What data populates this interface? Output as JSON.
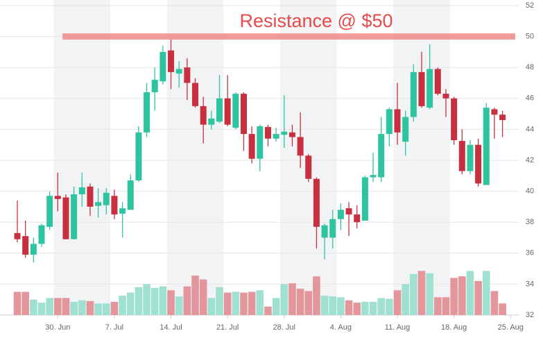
{
  "chart_data": {
    "type": "candlestick",
    "categories": [
      "25. Jun",
      "26. Jun",
      "27. Jun",
      "28. Jun",
      "29. Jun",
      "30. Jun",
      "1. Jul",
      "2. Jul",
      "3. Jul",
      "4. Jul",
      "5. Jul",
      "6. Jul",
      "7. Jul",
      "8. Jul",
      "9. Jul",
      "10. Jul",
      "11. Jul",
      "12. Jul",
      "13. Jul",
      "14. Jul",
      "15. Jul",
      "16. Jul",
      "17. Jul",
      "18. Jul",
      "19. Jul",
      "20. Jul",
      "21. Jul",
      "22. Jul",
      "23. Jul",
      "24. Jul",
      "25. Jul",
      "26. Jul",
      "27. Jul",
      "28. Jul",
      "29. Jul",
      "30. Jul",
      "31. Jul",
      "1. Aug",
      "2. Aug",
      "3. Aug",
      "4. Aug",
      "5. Aug",
      "6. Aug",
      "7. Aug",
      "8. Aug",
      "9. Aug",
      "10. Aug",
      "11. Aug",
      "12. Aug",
      "13. Aug",
      "14. Aug",
      "15. Aug",
      "16. Aug",
      "17. Aug",
      "18. Aug",
      "19. Aug",
      "20. Aug",
      "21. Aug",
      "22. Aug",
      "23. Aug",
      "24. Aug"
    ],
    "open": [
      37.3,
      37.1,
      35.9,
      36.6,
      37.7,
      39.7,
      39.6,
      36.9,
      39.8,
      40.3,
      39.05,
      39.1,
      39.7,
      38.55,
      38.8,
      40.7,
      43.8,
      46.4,
      47.1,
      49.1,
      47.6,
      48.0,
      47.0,
      45.5,
      44.3,
      44.5,
      46.0,
      44.1,
      46.3,
      43.7,
      42.1,
      44.15,
      43.4,
      43.65,
      43.8,
      43.5,
      42.3,
      40.8,
      37.0,
      37.0,
      38.2,
      38.9,
      38.5,
      38.1,
      40.9,
      40.9,
      43.7,
      45.3,
      43.2,
      44.8,
      47.7,
      45.4,
      47.9,
      46.3,
      46.0,
      43.25,
      41.3,
      43.0,
      40.4,
      45.3,
      44.95
    ],
    "high": [
      39.4,
      38.1,
      37.0,
      37.9,
      40.0,
      41.2,
      39.8,
      40.3,
      41.2,
      40.5,
      40.2,
      40.2,
      40.1,
      39.3,
      41.1,
      44.2,
      47.0,
      48.0,
      49.4,
      49.8,
      48.4,
      48.6,
      47.3,
      46.1,
      45.2,
      47.5,
      47.5,
      46.4,
      46.4,
      44.2,
      44.3,
      44.3,
      44.1,
      46.2,
      44.3,
      45.1,
      42.4,
      40.9,
      37.9,
      38.8,
      39.2,
      39.3,
      39.1,
      41.0,
      42.5,
      44.8,
      45.4,
      47.0,
      45.2,
      48.2,
      49.0,
      49.5,
      48.0,
      46.6,
      46.1,
      44.0,
      43.3,
      43.4,
      45.7,
      45.4,
      45.2
    ],
    "low": [
      36.7,
      35.7,
      35.4,
      36.4,
      37.5,
      38.7,
      36.9,
      36.9,
      39.0,
      38.4,
      38.3,
      38.5,
      38.2,
      37.0,
      38.8,
      40.6,
      43.5,
      45.2,
      46.9,
      46.6,
      46.7,
      45.9,
      45.4,
      43.1,
      44.0,
      44.4,
      44.2,
      44.0,
      42.6,
      41.8,
      41.3,
      42.9,
      43.2,
      42.8,
      42.9,
      41.5,
      40.6,
      36.3,
      35.6,
      36.3,
      37.5,
      37.1,
      37.6,
      38.1,
      40.6,
      40.6,
      42.9,
      43.0,
      42.3,
      44.5,
      45.4,
      45.3,
      46.2,
      44.8,
      43.0,
      41.1,
      41.1,
      40.3,
      40.4,
      43.4,
      43.5
    ],
    "close": [
      36.9,
      35.9,
      36.6,
      37.8,
      39.7,
      39.5,
      36.9,
      39.8,
      40.25,
      39.0,
      39.3,
      39.9,
      38.5,
      38.9,
      40.7,
      43.8,
      46.4,
      47.2,
      49.0,
      47.7,
      47.9,
      47.0,
      45.5,
      44.3,
      44.7,
      46.0,
      44.3,
      46.3,
      43.7,
      42.1,
      44.2,
      43.4,
      43.7,
      43.85,
      43.5,
      42.3,
      40.8,
      37.7,
      37.8,
      38.2,
      38.8,
      38.5,
      38.0,
      40.9,
      41.05,
      43.7,
      45.3,
      43.8,
      44.8,
      47.7,
      45.5,
      47.9,
      46.3,
      46.0,
      43.3,
      41.3,
      43.0,
      40.5,
      45.4,
      44.95,
      44.6
    ],
    "volume": [
      1.5,
      1.5,
      1.0,
      0.8,
      1.1,
      1.1,
      1.1,
      0.85,
      0.95,
      0.9,
      0.75,
      0.75,
      0.85,
      1.25,
      1.45,
      1.8,
      2.0,
      1.75,
      1.85,
      1.6,
      1.2,
      1.85,
      2.55,
      2.3,
      1.1,
      1.8,
      1.45,
      1.5,
      1.45,
      1.5,
      1.6,
      0.55,
      1.1,
      2.0,
      2.05,
      1.7,
      1.55,
      2.5,
      1.25,
      1.2,
      1.15,
      0.95,
      0.8,
      0.85,
      0.85,
      1.1,
      1.05,
      1.6,
      2.0,
      2.65,
      2.85,
      2.7,
      1.15,
      1.15,
      2.4,
      2.5,
      2.85,
      2.2,
      2.85,
      1.55,
      0.75
    ],
    "up_color": "#2ec4a0",
    "down_color": "#c8303f",
    "volume_up_color": "#9fe0d0",
    "volume_down_color": "#e3969c",
    "ylim": [
      32,
      52.2
    ],
    "yticks": [
      32,
      34,
      36,
      38,
      40,
      42,
      44,
      46,
      48,
      50,
      52
    ],
    "xticks": [
      {
        "value": 5,
        "label": "30. Jun"
      },
      {
        "value": 12,
        "label": "7. Jul"
      },
      {
        "value": 19,
        "label": "14. Jul"
      },
      {
        "value": 26,
        "label": "21. Jul"
      },
      {
        "value": 33,
        "label": "28. Jul"
      },
      {
        "value": 40,
        "label": "4. Aug"
      },
      {
        "value": 47,
        "label": "11. Aug"
      },
      {
        "value": 54,
        "label": "18. Aug"
      },
      {
        "value": 61,
        "label": "25. Aug"
      }
    ],
    "grid": true,
    "annotation": {
      "text": "Resistance @ $50",
      "value": 50,
      "from": "1. Jul",
      "color": "#f08a8a"
    }
  }
}
